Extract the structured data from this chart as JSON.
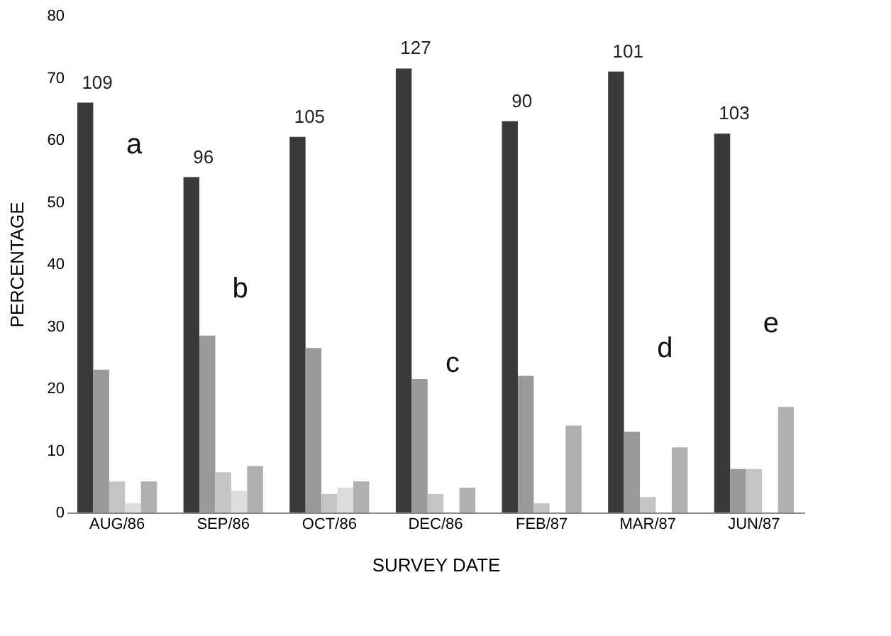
{
  "chart_data": {
    "type": "bar",
    "xlabel": "SURVEY DATE",
    "ylabel": "PERCENTAGE",
    "categories": [
      "AUG/86",
      "SEP/86",
      "OCT/86",
      "DEC/86",
      "FEB/87",
      "MAR/87",
      "JUN/87"
    ],
    "series": [
      {
        "color": "#3a3a3a",
        "values": [
          66,
          54,
          60.5,
          71.5,
          63,
          71,
          61
        ]
      },
      {
        "color": "#9a9a9a",
        "values": [
          23,
          28.5,
          26.5,
          21.5,
          22,
          13,
          7
        ]
      },
      {
        "color": "#c4c4c4",
        "values": [
          5,
          6.5,
          3,
          3,
          1.5,
          2.5,
          7
        ]
      },
      {
        "color": "#dddddd",
        "values": [
          1.5,
          3.5,
          4,
          null,
          null,
          null,
          null
        ]
      },
      {
        "color": "#b0b0b0",
        "values": [
          5,
          7.5,
          5,
          4,
          14,
          10.5,
          17
        ]
      }
    ],
    "ylim": [
      0,
      80
    ],
    "yticks": [
      0,
      10,
      20,
      30,
      40,
      50,
      60,
      70,
      80
    ],
    "grid": false,
    "annotations": [
      "109",
      "96",
      "105",
      "127",
      "90",
      "101",
      "103",
      "a",
      "b",
      "c",
      "d",
      "e"
    ]
  }
}
